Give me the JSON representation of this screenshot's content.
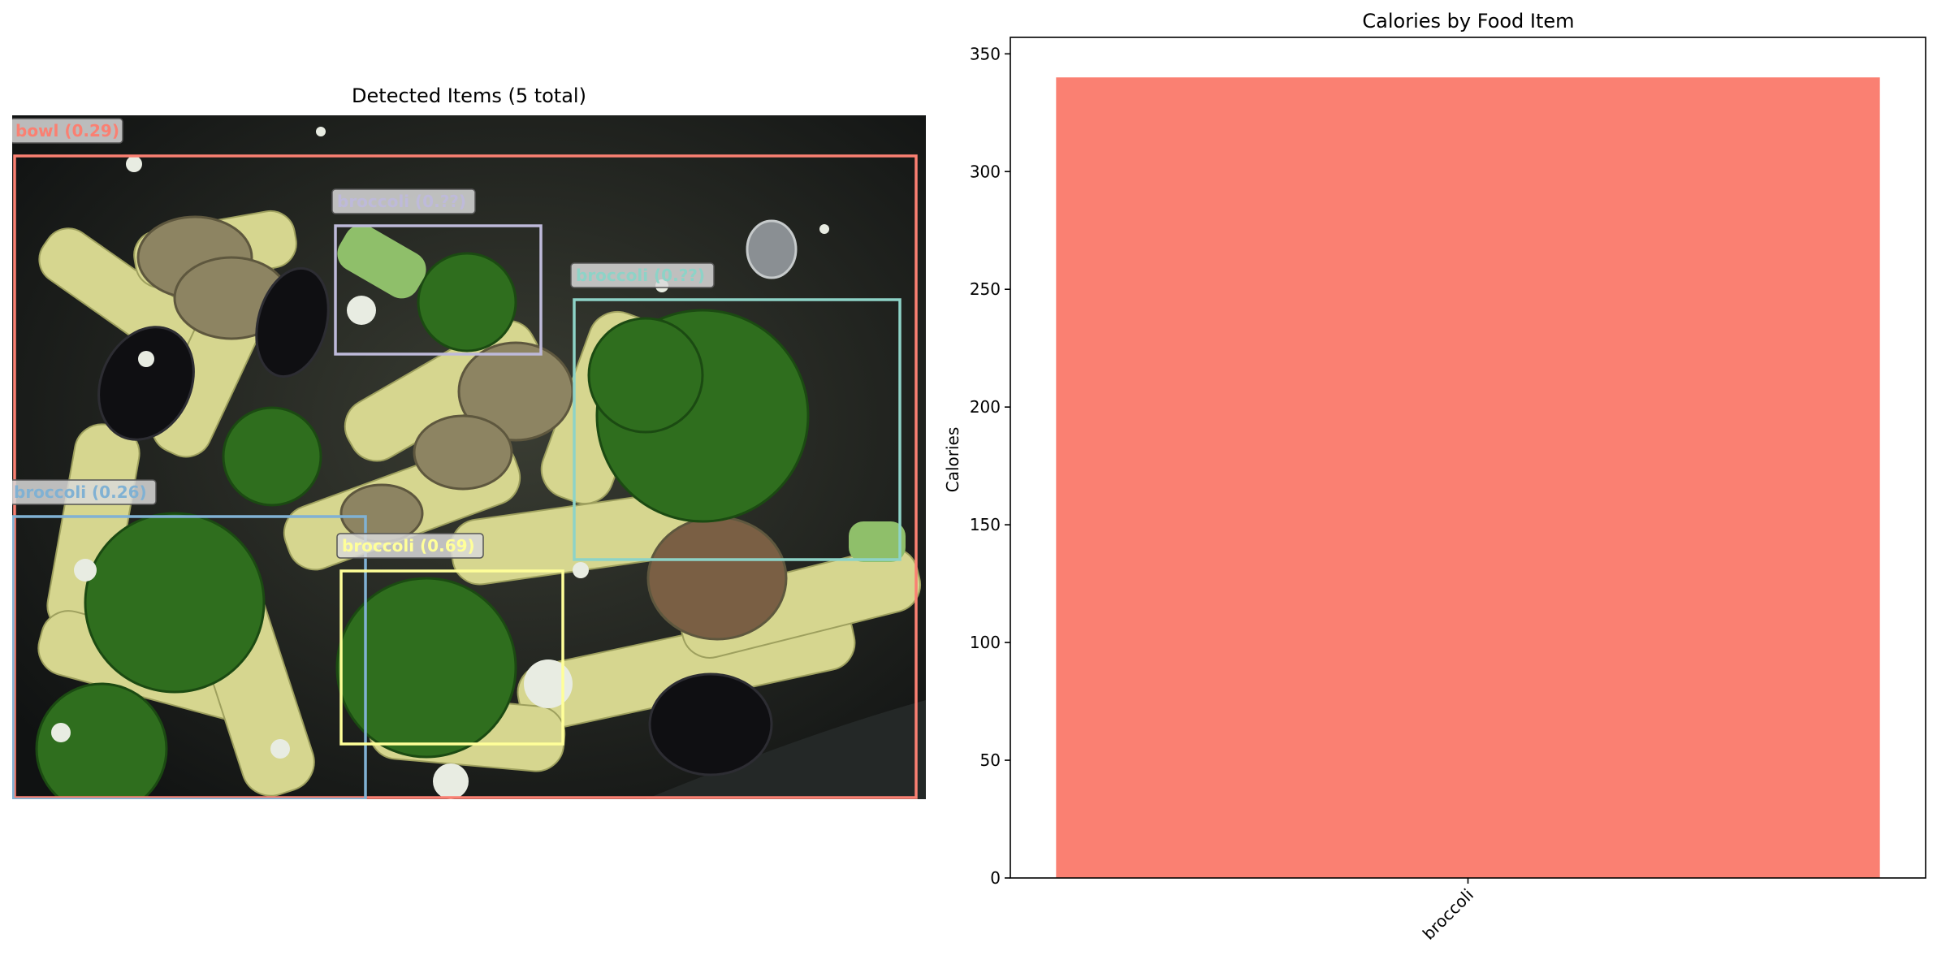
{
  "left_panel": {
    "title": "Detected Items (5 total)",
    "detections": [
      {
        "label": "bowl (0.29)",
        "color": "#fa8072"
      },
      {
        "label": "broccoli (0.??)",
        "color": "#bebada"
      },
      {
        "label": "broccoli (0.??)",
        "color": "#8dd3c7"
      },
      {
        "label": "broccoli (0.26)",
        "color": "#80b1d3"
      },
      {
        "label": "broccoli (0.69)",
        "color": "#ffff99"
      }
    ]
  },
  "chart_data": {
    "type": "bar",
    "title": "Calories by Food Item",
    "categories": [
      "broccoli"
    ],
    "values": [
      340
    ],
    "xlabel": "",
    "ylabel": "Calories",
    "ylim": [
      0,
      357
    ],
    "yticks": [
      0,
      50,
      100,
      150,
      200,
      250,
      300,
      350
    ],
    "bar_color": "#fa8072",
    "grid": false,
    "legend": "none"
  }
}
